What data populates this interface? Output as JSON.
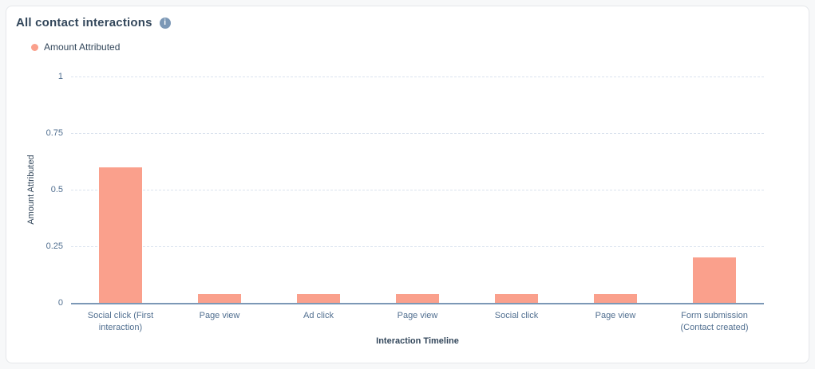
{
  "card": {
    "title": "All contact interactions",
    "info_icon_glyph": "i"
  },
  "legend": {
    "items": [
      {
        "label": "Amount Attributed",
        "color": "#faa08c"
      }
    ]
  },
  "chart_data": {
    "type": "bar",
    "title": "All contact interactions",
    "categories": [
      "Social click (First interaction)",
      "Page view",
      "Ad click",
      "Page view",
      "Social click",
      "Page view",
      "Form submission (Contact created)"
    ],
    "series": [
      {
        "name": "Amount Attributed",
        "values": [
          0.6,
          0.04,
          0.04,
          0.04,
          0.04,
          0.04,
          0.2
        ]
      }
    ],
    "xlabel": "Interaction Timeline",
    "ylabel": "Amount Attributed",
    "ylim": [
      0,
      1
    ],
    "yticks": [
      0,
      0.25,
      0.5,
      0.75,
      1
    ],
    "ytick_labels": [
      "0",
      "0.25",
      "0.5",
      "0.75",
      "1"
    ],
    "bar_color": "#faa08c",
    "grid": "horizontal-dashed",
    "legend_position": "top-left",
    "axis_line_color": "#7c98b6",
    "gridline_color": "#dbe3ee",
    "tick_label_color": "#516f90"
  }
}
